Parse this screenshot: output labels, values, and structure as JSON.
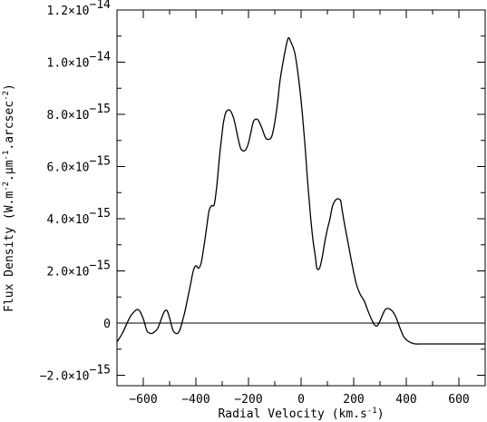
{
  "chart_data": {
    "type": "line",
    "xlabel": "Radial Velocity (km.s",
    "xlabel_sup": "-1",
    "xlabel_tail": ")",
    "ylabel": "Flux Density (W.m",
    "ylabel_sup1": "-2",
    "ylabel_mid1": ".μm",
    "ylabel_sup2": "-1",
    "ylabel_mid2": ".arcsec",
    "ylabel_sup3": "-2",
    "ylabel_tail": ")",
    "xlim": [
      -700,
      700
    ],
    "ylim": [
      -2.4e-15,
      1.2e-14
    ],
    "x_ticks": [
      {
        "value": -600,
        "label": "−600"
      },
      {
        "value": -400,
        "label": "−400"
      },
      {
        "value": -200,
        "label": "−200"
      },
      {
        "value": 0,
        "label": "0"
      },
      {
        "value": 200,
        "label": "200"
      },
      {
        "value": 400,
        "label": "400"
      },
      {
        "value": 600,
        "label": "600"
      }
    ],
    "y_ticks": [
      {
        "value": -2e-15,
        "base": "−2.0×10",
        "exp": "−15"
      },
      {
        "value": 0,
        "base": "0",
        "exp": ""
      },
      {
        "value": 2e-15,
        "base": "2.0×10",
        "exp": "−15"
      },
      {
        "value": 4e-15,
        "base": "4.0×10",
        "exp": "−15"
      },
      {
        "value": 6e-15,
        "base": "6.0×10",
        "exp": "−15"
      },
      {
        "value": 8e-15,
        "base": "8.0×10",
        "exp": "−15"
      },
      {
        "value": 1e-14,
        "base": "1.0×10",
        "exp": "−14"
      },
      {
        "value": 1.2e-14,
        "base": "1.2×10",
        "exp": "−14"
      }
    ],
    "zero_line": true,
    "grid": false,
    "series": [
      {
        "x": [
          -700,
          -680,
          -650,
          -630,
          -620,
          -610,
          -600,
          -595,
          -585,
          -570,
          -560,
          -545,
          -530,
          -520,
          -510,
          -500,
          -495,
          -485,
          -470,
          -460,
          -450,
          -440,
          -420,
          -410,
          -400,
          -390,
          -380,
          -370,
          -360,
          -350,
          -340,
          -330,
          -320,
          -310,
          -300,
          -295,
          -285,
          -270,
          -255,
          -240,
          -230,
          -220,
          -210,
          -200,
          -190,
          -180,
          -165,
          -150,
          -135,
          -120,
          -110,
          -100,
          -90,
          -80,
          -65,
          -50,
          -40,
          -25,
          -15,
          -5,
          5,
          15,
          25,
          35,
          45,
          55,
          60,
          70,
          80,
          90,
          100,
          110,
          120,
          135,
          150,
          155,
          165,
          180,
          195,
          210,
          225,
          240,
          255,
          270,
          280,
          290,
          300,
          310,
          320,
          330,
          345,
          360,
          375,
          390,
          405,
          420,
          435,
          450,
          460,
          470,
          480,
          490,
          500,
          510,
          520,
          530,
          540,
          550,
          560,
          570,
          580,
          590,
          600,
          610,
          620,
          630,
          645,
          660,
          680,
          700
        ],
        "y": [
          -7.2e-16,
          -4e-16,
          2.4e-16,
          4.8e-16,
          5.2e-16,
          4e-16,
          1.6e-16,
          0,
          -3.2e-16,
          -4e-16,
          -3.6e-16,
          -2e-16,
          2e-16,
          4.4e-16,
          4.8e-16,
          2e-16,
          0,
          -3.2e-16,
          -4e-16,
          -2.4e-16,
          1.2e-16,
          5.2e-16,
          1.5e-15,
          2e-15,
          2.2e-15,
          2.1e-15,
          2.3e-15,
          2.9e-15,
          3.6e-15,
          4.3e-15,
          4.5e-15,
          4.55e-15,
          5.3e-15,
          6.4e-15,
          7.3e-15,
          7.7e-15,
          8.1e-15,
          8.15e-15,
          7.8e-15,
          7.1e-15,
          6.7e-15,
          6.6e-15,
          6.65e-15,
          6.9e-15,
          7.35e-15,
          7.75e-15,
          7.8e-15,
          7.5e-15,
          7.1e-15,
          7.05e-15,
          7.2e-15,
          7.7e-15,
          8.4e-15,
          9.3e-15,
          1.02e-14,
          1.09e-14,
          1.08e-14,
          1.04e-14,
          9.8e-15,
          9e-15,
          8e-15,
          6.8e-15,
          5.4e-15,
          4.2e-15,
          3.2e-15,
          2.5e-15,
          2.1e-15,
          2.1e-15,
          2.5e-15,
          3.1e-15,
          3.6e-15,
          4e-15,
          4.5e-15,
          4.75e-15,
          4.7e-15,
          4.4e-15,
          3.8e-15,
          3e-15,
          2.2e-15,
          1.5e-15,
          1.1e-15,
          8.5e-16,
          4.5e-16,
          1e-16,
          -8e-17,
          -1e-16,
          8e-17,
          3.2e-16,
          5.2e-16,
          5.6e-16,
          4.8e-16,
          2.4e-16,
          -1.6e-16,
          -5.2e-16,
          -6.8e-16,
          -7.6e-16,
          -8e-16,
          -8e-16,
          -8e-16,
          -8e-16,
          -8e-16,
          -8e-16,
          -8e-16,
          -8e-16,
          -8e-16,
          -8e-16,
          -8e-16,
          -8e-16,
          -8e-16,
          -8e-16,
          -8e-16,
          -8e-16,
          -8e-16,
          -8e-16,
          -8e-16,
          -8e-16,
          -8e-16,
          -8e-16,
          -8e-16,
          -8e-16
        ]
      }
    ]
  }
}
